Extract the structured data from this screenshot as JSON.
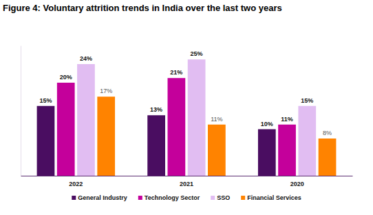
{
  "chart_data": {
    "type": "bar",
    "title": "Figure 4: Voluntary attrition trends in India over the last two years",
    "categories": [
      "2022",
      "2021",
      "2020"
    ],
    "series": [
      {
        "name": "General Industry",
        "color": "#4a0d61",
        "values": [
          15,
          13,
          10
        ],
        "value_labels": [
          "15%",
          "13%",
          "10%"
        ]
      },
      {
        "name": "Technology Sector",
        "color": "#c4009b",
        "values": [
          20,
          21,
          11
        ],
        "value_labels": [
          "20%",
          "21%",
          "11%"
        ]
      },
      {
        "name": "SSO",
        "color": "#e1bdf2",
        "values": [
          24,
          25,
          15
        ],
        "value_labels": [
          "24%",
          "25%",
          "15%"
        ]
      },
      {
        "name": "Financial Services",
        "color": "#ff8300",
        "values": [
          17,
          11,
          8
        ],
        "value_labels": [
          "17%",
          "11%",
          "8%"
        ]
      }
    ],
    "ylim": [
      0,
      28
    ],
    "tick_labels": "x",
    "data_labels": true,
    "legend": "bottom"
  }
}
